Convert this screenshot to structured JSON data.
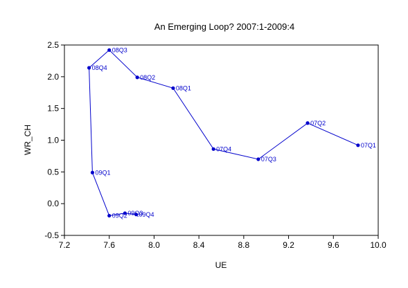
{
  "chart_data": {
    "type": "scatter",
    "title": "An Emerging Loop? 2007:1-2009:4",
    "xlabel": "UE",
    "ylabel": "WR_CH",
    "xlim": [
      7.2,
      10.0
    ],
    "ylim": [
      -0.5,
      2.5
    ],
    "x_ticks": [
      "7.2",
      "7.6",
      "8.0",
      "8.4",
      "8.8",
      "9.2",
      "9.6",
      "10.0"
    ],
    "y_ticks": [
      "-0.5",
      "0.0",
      "0.5",
      "1.0",
      "1.5",
      "2.0",
      "2.5"
    ],
    "grid": false,
    "line_color": "#0000cc",
    "series": [
      {
        "points": [
          {
            "label": "07Q1",
            "x": 9.82,
            "y": 0.92
          },
          {
            "label": "07Q2",
            "x": 9.37,
            "y": 1.27
          },
          {
            "label": "07Q3",
            "x": 8.93,
            "y": 0.7
          },
          {
            "label": "07Q4",
            "x": 8.53,
            "y": 0.86
          },
          {
            "label": "08Q1",
            "x": 8.17,
            "y": 1.82
          },
          {
            "label": "08Q2",
            "x": 7.85,
            "y": 1.99
          },
          {
            "label": "08Q3",
            "x": 7.6,
            "y": 2.42
          },
          {
            "label": "08Q4",
            "x": 7.42,
            "y": 2.14
          },
          {
            "label": "09Q1",
            "x": 7.45,
            "y": 0.49
          },
          {
            "label": "09Q2",
            "x": 7.6,
            "y": -0.19
          },
          {
            "label": "09Q3",
            "x": 7.74,
            "y": -0.15
          },
          {
            "label": "09Q4",
            "x": 7.84,
            "y": -0.17
          }
        ]
      }
    ]
  }
}
